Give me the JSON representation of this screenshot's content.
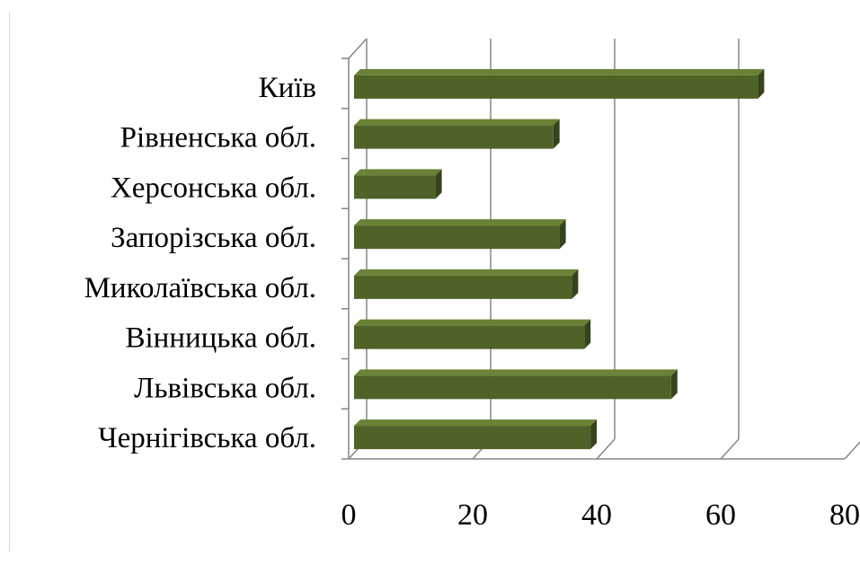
{
  "chart_data": {
    "type": "bar",
    "orientation": "horizontal",
    "style": "3d",
    "categories": [
      "Київ",
      "Рівненська обл.",
      "Херсонська обл.",
      "Запорізська обл.",
      "Миколаївська обл.",
      "Вінницька обл.",
      "Львівська обл.",
      "Чернігівська обл."
    ],
    "values": [
      66,
      33,
      14,
      34,
      36,
      38,
      52,
      39
    ],
    "xlim": [
      0,
      80
    ],
    "x_ticks": [
      0,
      20,
      40,
      60,
      80
    ],
    "x_tick_labels": [
      "0",
      "20",
      "40",
      "60",
      "80"
    ],
    "grid": true,
    "legend": "none",
    "colors": {
      "bar_front": "#4f6228",
      "bar_top": "#6a8236",
      "bar_side": "#36441a",
      "gridline": "#868686",
      "axis": "#868686"
    }
  }
}
